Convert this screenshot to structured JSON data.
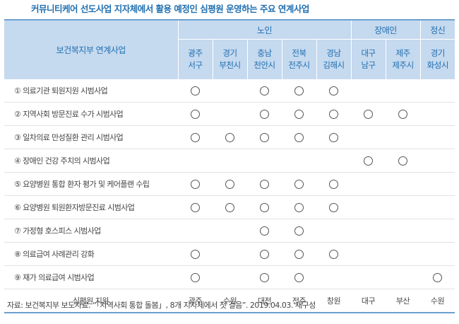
{
  "title": "커뮤니티케어 선도사업 지자체에서 활용 예정인 심평원 운영하는 주요 연계사업",
  "header": {
    "corner": "보건복지부 연계사업",
    "groups": [
      "노인",
      "장애인",
      "정신"
    ],
    "regions": [
      [
        "광주",
        "서구"
      ],
      [
        "경기",
        "부천시"
      ],
      [
        "충남",
        "천안시"
      ],
      [
        "전북",
        "전주시"
      ],
      [
        "경남",
        "김해시"
      ],
      [
        "대구",
        "남구"
      ],
      [
        "제주",
        "제주시"
      ],
      [
        "경기",
        "화성시"
      ]
    ]
  },
  "rows": [
    {
      "label": "① 의료기관 퇴원지원 시범사업",
      "marks": [
        1,
        0,
        1,
        1,
        1,
        0,
        0,
        0
      ]
    },
    {
      "label": "② 지역사회 방문진료 수가 시범사업",
      "marks": [
        1,
        0,
        1,
        1,
        1,
        1,
        1,
        0
      ]
    },
    {
      "label": "③ 일차의료 만성질환 관리 시범사업",
      "marks": [
        1,
        1,
        1,
        1,
        1,
        0,
        0,
        0
      ]
    },
    {
      "label": "④ 장애인 건강 주치의 시범사업",
      "marks": [
        0,
        0,
        0,
        0,
        0,
        1,
        1,
        0
      ]
    },
    {
      "label": "⑤ 요양병원 통합 환자 평가 및 케어플랜 수립",
      "marks": [
        1,
        1,
        1,
        1,
        1,
        0,
        0,
        0
      ]
    },
    {
      "label": "⑥ 요양병원 퇴원환자방문진료 시범사업",
      "marks": [
        1,
        1,
        1,
        1,
        1,
        0,
        0,
        0
      ]
    },
    {
      "label": "⑦ 가정형 호스피스 시범사업",
      "marks": [
        0,
        0,
        1,
        1,
        0,
        0,
        0,
        0
      ]
    },
    {
      "label": "⑧ 의료급여 사례관리 강화",
      "marks": [
        1,
        0,
        1,
        1,
        1,
        0,
        0,
        0
      ]
    },
    {
      "label": "⑨ 재가 의료급여 시범사업",
      "marks": [
        1,
        0,
        1,
        1,
        0,
        0,
        0,
        1
      ]
    }
  ],
  "support": {
    "label": "심평원 지원",
    "values": [
      "광주",
      "수원",
      "대전",
      "전주",
      "창원",
      "대구",
      "부산",
      "수원"
    ]
  },
  "source": "자료: 보건복지부 보도자료. “「지역사회 통합 돌봄」, 8개 지자체에서 첫 걸음”. 2019.04.03. 재구성"
}
